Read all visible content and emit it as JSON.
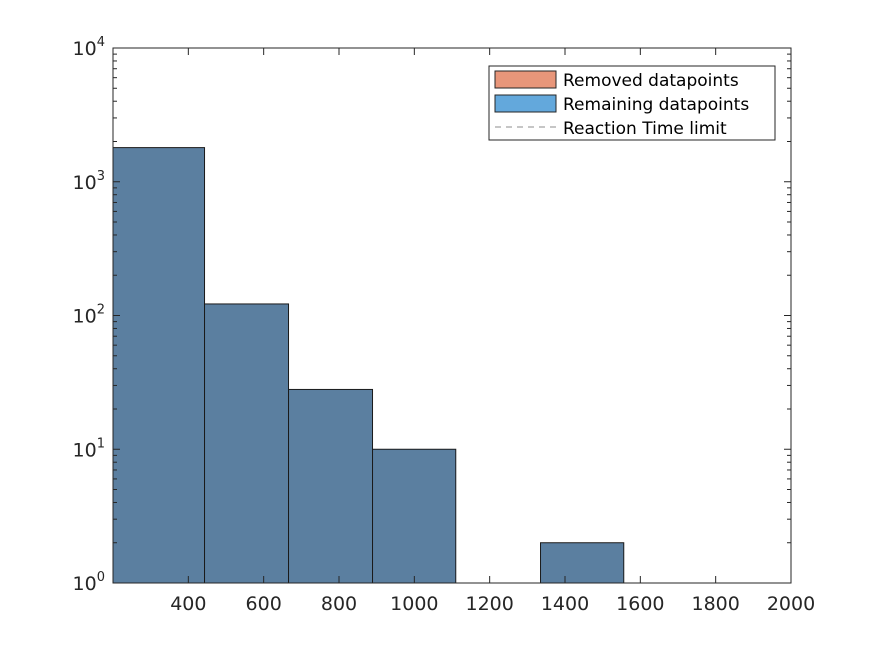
{
  "chart_data": {
    "type": "bar",
    "subtype": "histogram",
    "x_scale": "linear",
    "y_scale": "log",
    "xlim": [
      200,
      2000
    ],
    "ylim": [
      1,
      10000
    ],
    "x_ticks": [
      400,
      600,
      800,
      1000,
      1200,
      1400,
      1600,
      1800,
      2000
    ],
    "y_ticks": [
      {
        "base": "10",
        "exp": "0",
        "value": 1
      },
      {
        "base": "10",
        "exp": "1",
        "value": 10
      },
      {
        "base": "10",
        "exp": "2",
        "value": 100
      },
      {
        "base": "10",
        "exp": "3",
        "value": 1000
      },
      {
        "base": "10",
        "exp": "4",
        "value": 10000
      }
    ],
    "bins": [
      {
        "x0": 200,
        "x1": 443,
        "count": 1800
      },
      {
        "x0": 443,
        "x1": 666,
        "count": 122
      },
      {
        "x0": 666,
        "x1": 889,
        "count": 28
      },
      {
        "x0": 889,
        "x1": 1110,
        "count": 10
      },
      {
        "x0": 1335,
        "x1": 1556,
        "count": 2
      }
    ],
    "bar_color": "#5b7fa0",
    "legend": {
      "position": "top-right",
      "entries": [
        {
          "label": "Removed datapoints",
          "kind": "patch",
          "color": "#e8967a"
        },
        {
          "label": "Remaining datapoints",
          "kind": "patch",
          "color": "#63a8dc"
        },
        {
          "label": "Reaction Time limit",
          "kind": "dashed-line",
          "color": "#8c8c8c"
        }
      ]
    },
    "grid": false
  }
}
